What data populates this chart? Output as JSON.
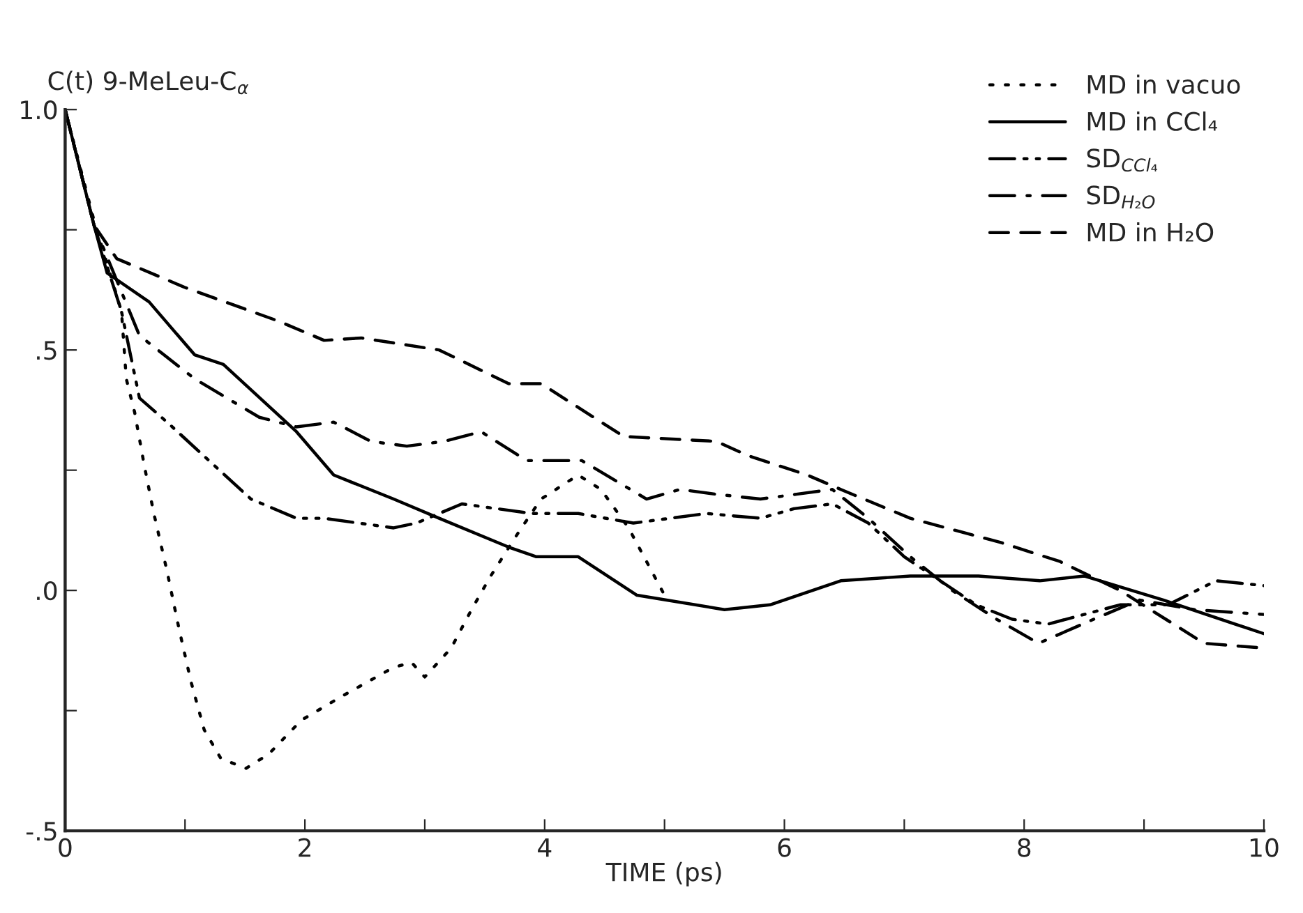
{
  "chart_data": {
    "type": "line",
    "ylabel": "C(t) 9-MeLeu-C$_{α}$",
    "xlabel": "TIME (ps)",
    "xlim": [
      0,
      10
    ],
    "ylim": [
      -0.5,
      1.0
    ],
    "xticks": [
      0,
      {
        "value": 1,
        "label": null
      },
      2,
      {
        "value": 3,
        "label": null
      },
      4,
      {
        "value": 5,
        "label": null
      },
      6,
      {
        "value": 7,
        "label": null
      },
      8,
      {
        "value": 9,
        "label": null
      },
      10
    ],
    "yticks": [
      {
        "value": -0.5,
        "label": "-.5"
      },
      {
        "value": -0.25,
        "label": null
      },
      {
        "value": 0,
        "label": ".0"
      },
      {
        "value": 0.25,
        "label": null
      },
      {
        "value": 0.5,
        "label": ".5"
      },
      {
        "value": 0.75,
        "label": null
      },
      {
        "value": 1.0,
        "label": "1.0"
      }
    ],
    "grid": false,
    "legend": "top right",
    "marker": "none",
    "series": [
      {
        "name": "MD in vacuo",
        "color": "#000000",
        "line_style": "dotted",
        "x": [
          0,
          0.24,
          0.47,
          0.51,
          0.58,
          0.66,
          0.74,
          0.85,
          0.95,
          1.05,
          1.16,
          1.3,
          1.51,
          1.7,
          1.97,
          2.31,
          2.74,
          2.89,
          3.0,
          3.22,
          3.39,
          3.55,
          3.78,
          3.97,
          4.28,
          4.47,
          4.7,
          4.85,
          5.0
        ],
        "values": [
          1.0,
          0.77,
          0.58,
          0.44,
          0.37,
          0.26,
          0.16,
          0.04,
          -0.08,
          -0.19,
          -0.29,
          -0.35,
          -0.37,
          -0.34,
          -0.27,
          -0.22,
          -0.16,
          -0.15,
          -0.18,
          -0.12,
          -0.04,
          0.03,
          0.12,
          0.19,
          0.24,
          0.21,
          0.13,
          0.06,
          -0.01
        ]
      },
      {
        "name": "MD in CCl₄",
        "color": "#000000",
        "line_style": "solid",
        "x": [
          0,
          0.24,
          0.35,
          0.7,
          1.08,
          1.32,
          1.93,
          2.24,
          2.74,
          3.12,
          3.7,
          3.93,
          4.28,
          4.77,
          5.5,
          5.88,
          6.47,
          7.05,
          7.62,
          8.13,
          8.5,
          9.16,
          10
        ],
        "values": [
          1.0,
          0.76,
          0.66,
          0.6,
          0.49,
          0.47,
          0.33,
          0.24,
          0.19,
          0.15,
          0.09,
          0.07,
          0.07,
          -0.01,
          -0.04,
          -0.03,
          0.02,
          0.03,
          0.03,
          0.02,
          0.03,
          -0.02,
          -0.09
        ]
      },
      {
        "name": "SD$_{CCl₄}$",
        "color": "#000000",
        "line_style": "dashdotdot",
        "x": [
          0,
          0.24,
          0.47,
          0.62,
          0.85,
          1.2,
          1.55,
          1.93,
          2.16,
          2.74,
          2.93,
          3.31,
          3.89,
          4.28,
          4.74,
          5.35,
          5.8,
          6.08,
          6.4,
          6.7,
          7.0,
          7.3,
          7.6,
          7.9,
          8.2,
          8.5,
          8.8,
          9.2,
          9.6,
          10
        ],
        "values": [
          1.0,
          0.76,
          0.58,
          0.4,
          0.35,
          0.27,
          0.19,
          0.15,
          0.15,
          0.13,
          0.14,
          0.18,
          0.16,
          0.16,
          0.14,
          0.16,
          0.15,
          0.17,
          0.18,
          0.14,
          0.07,
          0.02,
          -0.03,
          -0.06,
          -0.07,
          -0.05,
          -0.03,
          -0.03,
          0.02,
          0.01
        ]
      },
      {
        "name": "SD$_{H₂O}$",
        "color": "#000000",
        "line_style": "dashdot",
        "x": [
          0,
          0.24,
          0.62,
          1.08,
          1.62,
          1.93,
          2.24,
          2.55,
          2.85,
          3.16,
          3.47,
          3.85,
          4.31,
          4.85,
          5.13,
          5.43,
          5.8,
          6.1,
          6.4,
          6.7,
          7.05,
          7.4,
          7.77,
          8.12,
          8.58,
          8.96,
          9.42,
          10
        ],
        "values": [
          1.0,
          0.76,
          0.53,
          0.44,
          0.36,
          0.34,
          0.35,
          0.31,
          0.3,
          0.31,
          0.33,
          0.27,
          0.27,
          0.19,
          0.21,
          0.2,
          0.19,
          0.2,
          0.21,
          0.15,
          0.07,
          0.0,
          -0.06,
          -0.11,
          -0.06,
          -0.02,
          -0.04,
          -0.05
        ]
      },
      {
        "name": "MD in H₂O",
        "color": "#000000",
        "line_style": "dashed",
        "x": [
          0,
          0.24,
          0.43,
          1.0,
          1.78,
          2.16,
          2.47,
          3.12,
          3.7,
          3.97,
          4.66,
          5.43,
          5.7,
          6.19,
          6.47,
          7.05,
          7.8,
          8.3,
          8.8,
          9.5,
          10
        ],
        "values": [
          1.0,
          0.76,
          0.69,
          0.63,
          0.56,
          0.52,
          0.525,
          0.5,
          0.43,
          0.43,
          0.32,
          0.31,
          0.28,
          0.24,
          0.21,
          0.15,
          0.1,
          0.06,
          0.0,
          -0.11,
          -0.12
        ]
      }
    ]
  }
}
